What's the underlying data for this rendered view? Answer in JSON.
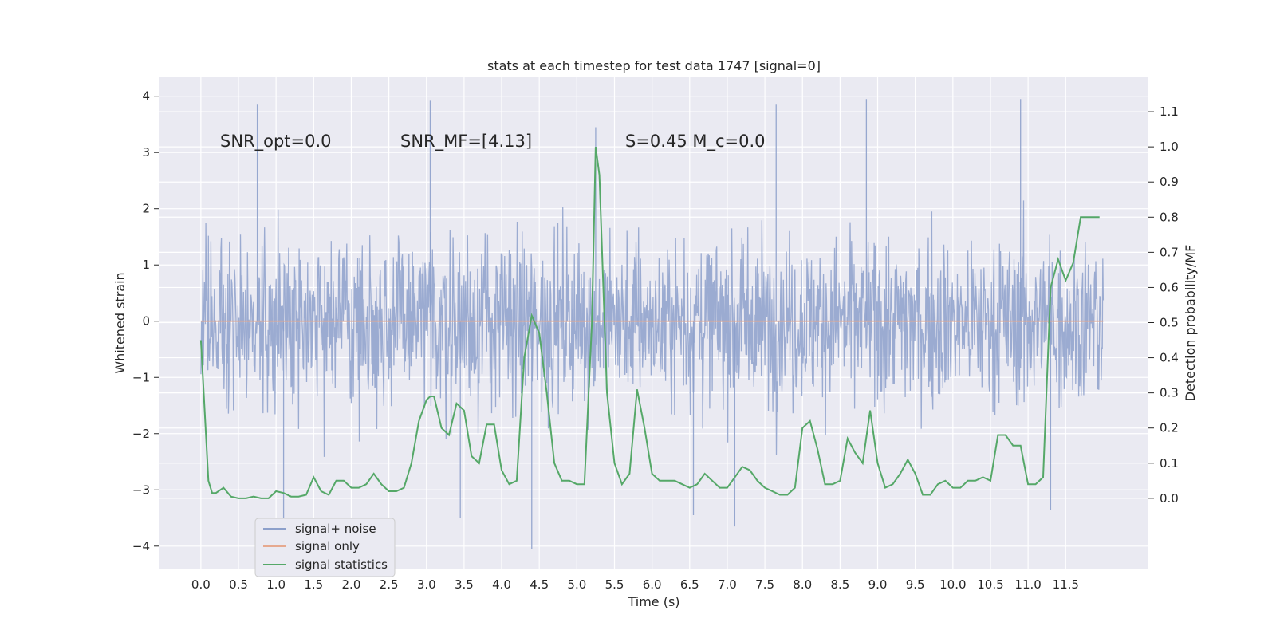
{
  "chart_data": {
    "type": "line",
    "title": "stats at each timestep for test data 1747 [signal=0]",
    "xlabel": "Time (s)",
    "ylabel_left": "Whitened strain",
    "ylabel_right": "Detection probability/MF",
    "xlim": [
      -0.55,
      12.6
    ],
    "ylim_left": [
      -4.4,
      4.35
    ],
    "ylim_right": [
      -0.2,
      1.2
    ],
    "x_ticks": [
      0.0,
      0.5,
      1.0,
      1.5,
      2.0,
      2.5,
      3.0,
      3.5,
      4.0,
      4.5,
      5.0,
      5.5,
      6.0,
      6.5,
      7.0,
      7.5,
      8.0,
      8.5,
      9.0,
      9.5,
      10.0,
      10.5,
      11.0,
      11.5
    ],
    "x_tick_labels": [
      "0.0",
      "0.5",
      "1.0",
      "1.5",
      "2.0",
      "2.5",
      "3.0",
      "3.5",
      "4.0",
      "4.5",
      "5.0",
      "5.5",
      "6.0",
      "6.5",
      "7.0",
      "7.5",
      "8.0",
      "8.5",
      "9.0",
      "9.5",
      "10.0",
      "10.5",
      "11.0",
      "11.5"
    ],
    "y_left_ticks": [
      -4,
      -3,
      -2,
      -1,
      0,
      1,
      2,
      3,
      4
    ],
    "y_left_tick_labels": [
      "−4",
      "−3",
      "−2",
      "−1",
      "0",
      "1",
      "2",
      "3",
      "4"
    ],
    "y_right_ticks": [
      0.0,
      0.1,
      0.2,
      0.3,
      0.4,
      0.5,
      0.6,
      0.7,
      0.8,
      0.9,
      1.0,
      1.1
    ],
    "y_right_tick_labels": [
      "0.0",
      "0.1",
      "0.2",
      "0.3",
      "0.4",
      "0.5",
      "0.6",
      "0.7",
      "0.8",
      "0.9",
      "1.0",
      "1.1"
    ],
    "grid": true,
    "legend_position": "lower-left",
    "annotations": [
      {
        "text": "SNR_opt=0.0",
        "x": 0.2,
        "y": 3.1
      },
      {
        "text": "SNR_MF=[4.13]",
        "x": 2.6,
        "y": 3.1
      },
      {
        "text": "S=0.45   M_c=0.0",
        "x": 5.6,
        "y": 3.1
      }
    ],
    "noise_series": {
      "name": "signal+ noise",
      "axis": "left",
      "color": "#8da0cb",
      "dense": true,
      "x_range": [
        0.0,
        12.0
      ],
      "sample_rate_hz": 150,
      "envelope_typical": [
        -2.5,
        2.5
      ],
      "envelope_extreme": [
        -4.05,
        3.95
      ],
      "notable_peaks": [
        {
          "x": 0.75,
          "y": 3.85
        },
        {
          "x": 3.05,
          "y": 3.92
        },
        {
          "x": 5.25,
          "y": 3.45
        },
        {
          "x": 7.65,
          "y": 3.85
        },
        {
          "x": 8.85,
          "y": 3.95
        },
        {
          "x": 10.9,
          "y": 3.95
        },
        {
          "x": 4.4,
          "y": -4.05
        },
        {
          "x": 1.1,
          "y": -3.7
        },
        {
          "x": 3.45,
          "y": -3.5
        },
        {
          "x": 6.55,
          "y": -3.45
        },
        {
          "x": 7.1,
          "y": -3.65
        },
        {
          "x": 11.3,
          "y": -3.35
        }
      ]
    },
    "series": [
      {
        "name": "signal only",
        "axis": "left",
        "color": "#e6a98f",
        "x": [
          0.0,
          12.0
        ],
        "values": [
          0.0,
          0.0
        ]
      },
      {
        "name": "signal statistics",
        "axis": "right",
        "color": "#55a868",
        "x": [
          0.0,
          0.05,
          0.1,
          0.15,
          0.2,
          0.3,
          0.4,
          0.5,
          0.6,
          0.7,
          0.8,
          0.9,
          1.0,
          1.1,
          1.2,
          1.3,
          1.4,
          1.5,
          1.6,
          1.7,
          1.8,
          1.9,
          2.0,
          2.1,
          2.2,
          2.3,
          2.4,
          2.5,
          2.6,
          2.7,
          2.8,
          2.9,
          3.0,
          3.05,
          3.1,
          3.2,
          3.3,
          3.4,
          3.5,
          3.6,
          3.7,
          3.8,
          3.9,
          4.0,
          4.1,
          4.2,
          4.3,
          4.4,
          4.5,
          4.6,
          4.7,
          4.8,
          4.9,
          5.0,
          5.1,
          5.2,
          5.25,
          5.3,
          5.4,
          5.5,
          5.6,
          5.7,
          5.8,
          5.9,
          6.0,
          6.1,
          6.2,
          6.3,
          6.4,
          6.5,
          6.6,
          6.7,
          6.8,
          6.9,
          7.0,
          7.1,
          7.2,
          7.3,
          7.4,
          7.5,
          7.6,
          7.7,
          7.8,
          7.9,
          8.0,
          8.1,
          8.2,
          8.3,
          8.4,
          8.5,
          8.6,
          8.7,
          8.8,
          8.9,
          9.0,
          9.1,
          9.2,
          9.3,
          9.4,
          9.5,
          9.6,
          9.7,
          9.8,
          9.9,
          10.0,
          10.1,
          10.2,
          10.3,
          10.4,
          10.5,
          10.6,
          10.7,
          10.8,
          10.9,
          11.0,
          11.1,
          11.2,
          11.3,
          11.4,
          11.5,
          11.6,
          11.7,
          11.75,
          11.8,
          11.85,
          11.9,
          11.95
        ],
        "values": [
          0.45,
          0.25,
          0.05,
          0.015,
          0.015,
          0.03,
          0.005,
          0.0,
          0.0,
          0.005,
          0.0,
          0.0,
          0.02,
          0.015,
          0.005,
          0.005,
          0.01,
          0.06,
          0.02,
          0.01,
          0.05,
          0.05,
          0.03,
          0.03,
          0.04,
          0.07,
          0.04,
          0.02,
          0.02,
          0.03,
          0.1,
          0.22,
          0.28,
          0.29,
          0.29,
          0.2,
          0.18,
          0.27,
          0.25,
          0.12,
          0.1,
          0.21,
          0.21,
          0.08,
          0.04,
          0.05,
          0.4,
          0.52,
          0.47,
          0.3,
          0.1,
          0.05,
          0.05,
          0.04,
          0.04,
          0.5,
          1.0,
          0.92,
          0.3,
          0.1,
          0.04,
          0.07,
          0.31,
          0.2,
          0.07,
          0.05,
          0.05,
          0.05,
          0.04,
          0.03,
          0.04,
          0.07,
          0.05,
          0.03,
          0.03,
          0.06,
          0.09,
          0.08,
          0.05,
          0.03,
          0.02,
          0.01,
          0.01,
          0.03,
          0.2,
          0.22,
          0.14,
          0.04,
          0.04,
          0.05,
          0.17,
          0.13,
          0.1,
          0.25,
          0.1,
          0.03,
          0.04,
          0.07,
          0.11,
          0.07,
          0.01,
          0.01,
          0.04,
          0.05,
          0.03,
          0.03,
          0.05,
          0.05,
          0.06,
          0.05,
          0.18,
          0.18,
          0.15,
          0.15,
          0.04,
          0.04,
          0.06,
          0.6,
          0.68,
          0.62,
          0.67,
          0.8,
          0.8,
          0.8,
          0.8,
          0.8,
          0.8
        ]
      }
    ]
  }
}
